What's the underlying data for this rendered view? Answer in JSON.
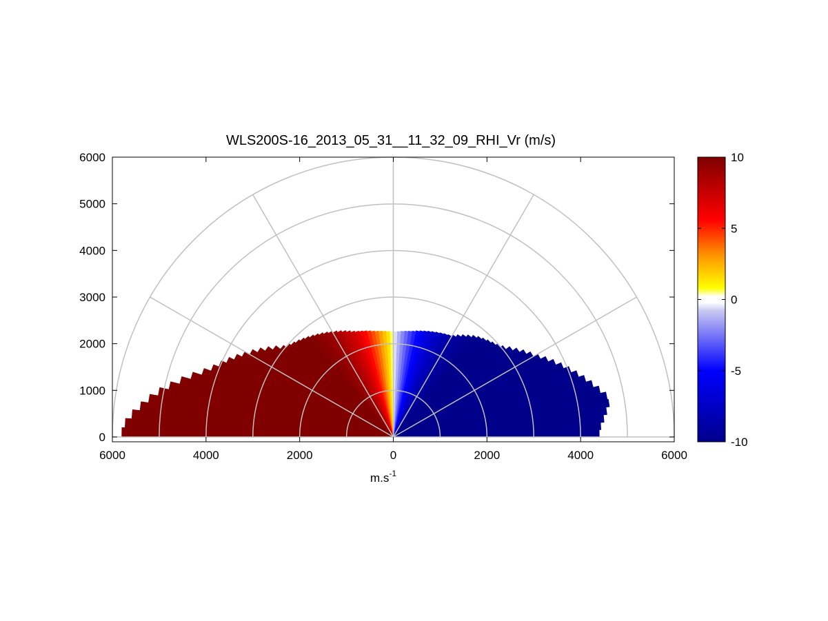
{
  "chart_data": {
    "type": "heatmap",
    "subtype": "polar-rhi-scan",
    "title": "WLS200S-16_2013_05_31__11_32_09_RHI_Vr (m/s)",
    "xlabel": "m.s",
    "xlabel_superscript": "-1",
    "ylabel": "",
    "xlim": [
      -6000,
      6000
    ],
    "ylim": [
      0,
      6000
    ],
    "x_ticks": [
      -6000,
      -4000,
      -2000,
      0,
      2000,
      4000,
      6000
    ],
    "x_tick_labels": [
      "6000",
      "4000",
      "2000",
      "0",
      "2000",
      "4000",
      "6000"
    ],
    "y_ticks": [
      0,
      1000,
      2000,
      3000,
      4000,
      5000,
      6000
    ],
    "y_tick_labels": [
      "0",
      "1000",
      "2000",
      "3000",
      "4000",
      "5000",
      "6000"
    ],
    "polar_grid": {
      "range_rings": [
        1000,
        2000,
        3000,
        4000,
        5000,
        6000
      ],
      "spokes_deg": [
        0,
        30,
        60,
        90,
        120,
        150,
        180
      ],
      "color": "#c0c0c0"
    },
    "colorbar": {
      "min": -10,
      "max": 10,
      "ticks": [
        10,
        5,
        0,
        -5,
        -10
      ],
      "tick_labels": [
        "10",
        "5",
        "0",
        "-5",
        "-10"
      ],
      "colors_low_to_high": [
        "#00008a",
        "#0000ff",
        "#dcdcf4",
        "#ffffff",
        "#ffff00",
        "#ff8000",
        "#ff0000",
        "#800000"
      ]
    },
    "grid": false,
    "legend": "none",
    "data_note": "Radial velocity: positive (dark red, ~+10 m/s) on left half, negative (dark blue, ~-10 m/s) on right half, weakening toward vertical; main echo within ~2000 m altitude, extending to ~5800 m range at low elevation.",
    "velocity_profile_by_elevation": {
      "elevation_deg": [
        2,
        10,
        20,
        30,
        40,
        50,
        60,
        70,
        80,
        88,
        92,
        100,
        110,
        120,
        130,
        140,
        150,
        160,
        170,
        178
      ],
      "vr_ms": [
        10,
        10,
        10,
        10,
        10,
        10,
        9,
        7,
        4,
        1,
        -1,
        -4,
        -7,
        -9,
        -10,
        -10,
        -10,
        -10,
        -10,
        -10
      ]
    },
    "max_echo_range_by_elevation": {
      "elevation_deg": [
        2,
        5,
        10,
        15,
        20,
        25,
        30,
        40,
        50,
        60,
        70,
        80,
        90,
        100,
        110,
        120,
        130,
        140,
        150,
        160,
        170,
        178
      ],
      "range_m": [
        5800,
        5600,
        5200,
        4700,
        4200,
        3900,
        3600,
        3000,
        2800,
        2600,
        2400,
        2300,
        2250,
        2300,
        2400,
        2500,
        2800,
        3000,
        3500,
        4100,
        4700,
        4400
      ]
    }
  }
}
